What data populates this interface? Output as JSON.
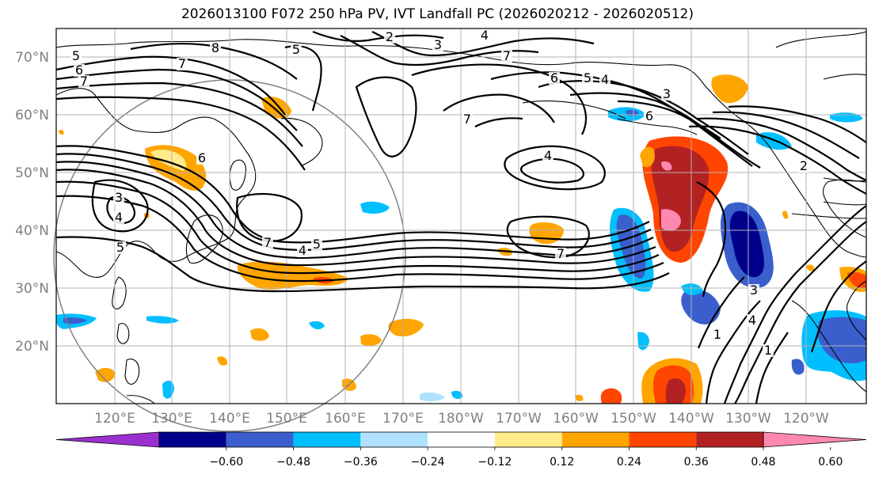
{
  "title": "2026013100 F072 250 hPa PV, IVT Landfall PC (2026020212 - 2026020512)",
  "latitude_labels": [
    "70°N",
    "60°N",
    "50°N",
    "40°N",
    "30°N",
    "20°N"
  ],
  "longitude_labels": [
    "120°E",
    "130°E",
    "140°E",
    "150°E",
    "160°E",
    "170°E",
    "180°W",
    "170°W",
    "160°W",
    "150°W",
    "140°W",
    "130°W",
    "120°W"
  ],
  "colorbar": {
    "tick_labels": [
      "−0.60",
      "−0.48",
      "−0.36",
      "−0.24",
      "−0.12",
      "0.12",
      "0.24",
      "0.36",
      "0.48",
      "0.60"
    ],
    "colors": [
      "#9b30d0",
      "#00008b",
      "#3a5fcd",
      "#00bfff",
      "#b0e2ff",
      "#ffffff",
      "#ffeb8a",
      "#ffa500",
      "#ff4500",
      "#b22222",
      "#ff88b0"
    ]
  },
  "contour_labels": [
    "2",
    "3",
    "4",
    "5",
    "6",
    "7",
    "8",
    "7",
    "6",
    "5",
    "4",
    "3",
    "7",
    "6",
    "5",
    "4",
    "3",
    "6",
    "4",
    "7",
    "4",
    "5",
    "7",
    "3",
    "4",
    "1",
    "1",
    "2"
  ]
}
